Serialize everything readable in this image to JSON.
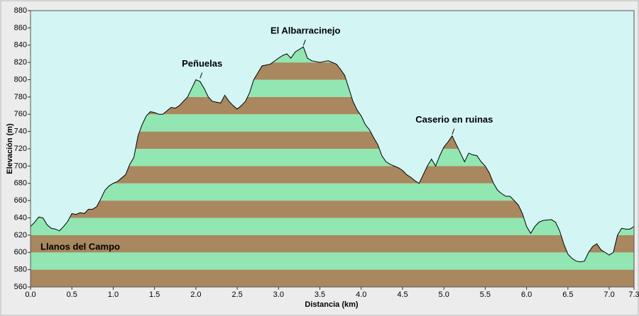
{
  "chart_data": {
    "type": "area",
    "xlabel": "Distancia  (km)",
    "ylabel": "Elevación (m)",
    "xlim": [
      0,
      7.3
    ],
    "ylim": [
      560,
      880
    ],
    "xticks": [
      {
        "value": 0,
        "label": "0.0"
      },
      {
        "value": 0.5,
        "label": "0.5"
      },
      {
        "value": 1,
        "label": "1.0"
      },
      {
        "value": 1.5,
        "label": "1.5"
      },
      {
        "value": 2,
        "label": "2.0"
      },
      {
        "value": 2.5,
        "label": "2.5"
      },
      {
        "value": 3,
        "label": "3.0"
      },
      {
        "value": 3.5,
        "label": "3.5"
      },
      {
        "value": 4,
        "label": "4.0"
      },
      {
        "value": 4.5,
        "label": "4.5"
      },
      {
        "value": 5,
        "label": "5.0"
      },
      {
        "value": 5.5,
        "label": "5.5"
      },
      {
        "value": 6,
        "label": "6.0"
      },
      {
        "value": 6.5,
        "label": "6.5"
      },
      {
        "value": 7,
        "label": "7.0"
      },
      {
        "value": 7.3,
        "label": "7.3"
      }
    ],
    "yticks": [
      560,
      580,
      600,
      620,
      640,
      660,
      680,
      700,
      720,
      740,
      760,
      780,
      800,
      820,
      840,
      860,
      880
    ],
    "background_color": "#d3f6f5",
    "band_colors": [
      "#a9875f",
      "#92e6b1"
    ],
    "line_color": "#000000",
    "x": [
      0,
      0.05,
      0.1,
      0.15,
      0.2,
      0.25,
      0.3,
      0.35,
      0.4,
      0.45,
      0.5,
      0.55,
      0.6,
      0.65,
      0.7,
      0.75,
      0.8,
      0.85,
      0.9,
      0.95,
      1,
      1.05,
      1.1,
      1.15,
      1.2,
      1.25,
      1.3,
      1.35,
      1.4,
      1.45,
      1.5,
      1.55,
      1.6,
      1.7,
      1.75,
      1.8,
      1.9,
      1.95,
      2,
      2.05,
      2.1,
      2.15,
      2.2,
      2.3,
      2.35,
      2.4,
      2.45,
      2.5,
      2.55,
      2.6,
      2.65,
      2.7,
      2.75,
      2.8,
      2.9,
      3,
      3.05,
      3.1,
      3.15,
      3.2,
      3.25,
      3.3,
      3.35,
      3.4,
      3.5,
      3.6,
      3.7,
      3.75,
      3.8,
      3.85,
      3.9,
      3.95,
      4,
      4.05,
      4.1,
      4.15,
      4.2,
      4.25,
      4.3,
      4.35,
      4.4,
      4.45,
      4.5,
      4.55,
      4.6,
      4.65,
      4.7,
      4.75,
      4.8,
      4.85,
      4.9,
      4.95,
      5,
      5.05,
      5.1,
      5.15,
      5.2,
      5.25,
      5.3,
      5.35,
      5.4,
      5.45,
      5.5,
      5.55,
      5.6,
      5.65,
      5.7,
      5.75,
      5.8,
      5.85,
      5.9,
      5.95,
      6,
      6.05,
      6.1,
      6.15,
      6.2,
      6.3,
      6.35,
      6.4,
      6.45,
      6.5,
      6.55,
      6.6,
      6.65,
      6.7,
      6.75,
      6.8,
      6.85,
      6.9,
      6.95,
      7,
      7.05,
      7.1,
      7.15,
      7.2,
      7.25,
      7.3
    ],
    "values": [
      630,
      635,
      641,
      640,
      632,
      628,
      627,
      625,
      630,
      636,
      645,
      644,
      646,
      645,
      650,
      650,
      653,
      662,
      672,
      677,
      680,
      682,
      686,
      690,
      702,
      710,
      735,
      748,
      758,
      763,
      762,
      760,
      760,
      768,
      767,
      770,
      780,
      790,
      800,
      798,
      790,
      780,
      775,
      773,
      782,
      775,
      770,
      766,
      770,
      775,
      785,
      800,
      808,
      816,
      818,
      825,
      828,
      830,
      825,
      832,
      835,
      838,
      825,
      822,
      820,
      822,
      818,
      812,
      805,
      790,
      775,
      765,
      758,
      748,
      742,
      733,
      725,
      712,
      705,
      702,
      700,
      698,
      695,
      690,
      687,
      683,
      680,
      690,
      700,
      708,
      700,
      712,
      722,
      728,
      735,
      725,
      715,
      705,
      715,
      713,
      712,
      705,
      700,
      692,
      680,
      672,
      668,
      665,
      665,
      660,
      655,
      645,
      630,
      622,
      630,
      635,
      637,
      638,
      635,
      625,
      610,
      598,
      593,
      590,
      589,
      590,
      600,
      607,
      610,
      603,
      600,
      597,
      600,
      620,
      628,
      627,
      627,
      630
    ],
    "annotations": [
      {
        "text": "El Albarracinejo",
        "x": 3.3,
        "y": 838
      },
      {
        "text": "Peñuelas",
        "x": 2.05,
        "y": 800
      },
      {
        "text": "Caserio en ruinas",
        "x": 5.1,
        "y": 735
      },
      {
        "text": "Llanos del Campo",
        "x": 0.1,
        "y": 610
      }
    ]
  }
}
